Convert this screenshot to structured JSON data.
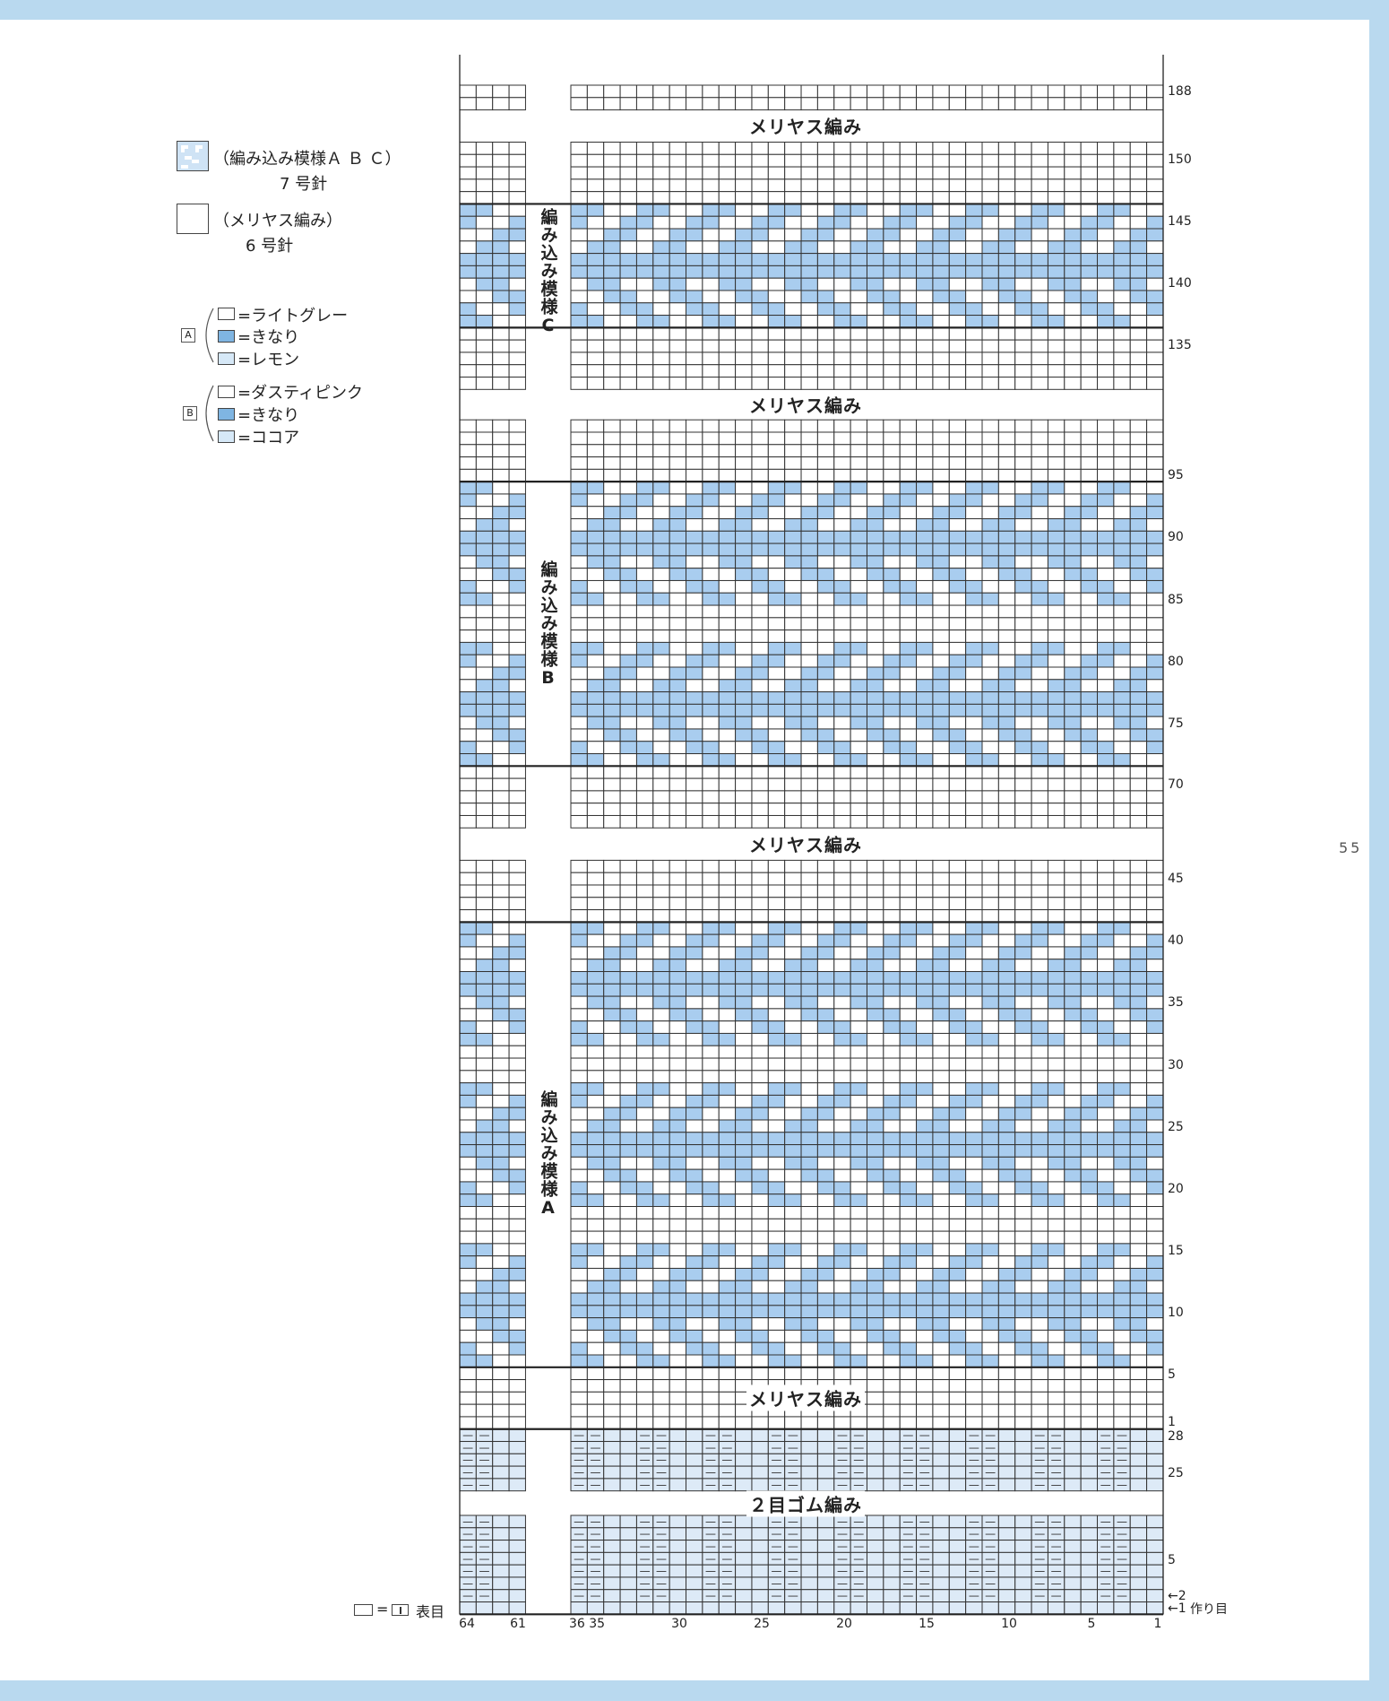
{
  "page_number": "55",
  "colors": {
    "frame": "#b9d9ef",
    "motif_cell": "#a9cdef",
    "rib_cell": "#ddeaf7",
    "grid": "#333333"
  },
  "legend": {
    "colorwork_label": "（編み込み模様Ａ Ｂ Ｃ）",
    "colorwork_needle": "7 号針",
    "stockinette_label": "（メリヤス編み）",
    "stockinette_needle": "6 号針",
    "scheme_a": {
      "tag": "A",
      "items": [
        {
          "label": "=ライトグレー",
          "color": "#ffffff"
        },
        {
          "label": "=きなり",
          "color": "#7fb5e2"
        },
        {
          "label": "=レモン",
          "color": "#d6e8f7"
        }
      ]
    },
    "scheme_b": {
      "tag": "B",
      "items": [
        {
          "label": "=ダスティピンク",
          "color": "#ffffff"
        },
        {
          "label": "=きなり",
          "color": "#7fb5e2"
        },
        {
          "label": "=ココア",
          "color": "#d6e8f7"
        }
      ]
    },
    "knit_symbol": {
      "eq": "=",
      "label": "表目"
    }
  },
  "chart": {
    "section_titles": [
      "メリヤス編み",
      "メリヤス編み",
      "メリヤス編み",
      "メリヤス編み",
      "２目ゴム編み"
    ],
    "pattern_labels": [
      "編み込み模様C",
      "編み込み模様B",
      "編み込み模様A"
    ],
    "row_labels": [
      "188",
      "150",
      "145",
      "140",
      "135",
      "95",
      "90",
      "85",
      "80",
      "75",
      "70",
      "45",
      "40",
      "35",
      "30",
      "25",
      "20",
      "15",
      "10",
      "5",
      "1",
      "28",
      "25",
      "5",
      "←2",
      "←1"
    ],
    "cast_on_label": "作り目",
    "col_labels": [
      "64",
      "61",
      "36 35",
      "30",
      "25",
      "20",
      "15",
      "10",
      "5",
      "1"
    ],
    "motif_rows": [
      "BBWW",
      "BWWB",
      "WWBB",
      "WBBW",
      "BBBB",
      "BBBB",
      "WBBW",
      "WWBB",
      "BWWB",
      "BBWW"
    ],
    "rib_purl_mark": "—"
  }
}
